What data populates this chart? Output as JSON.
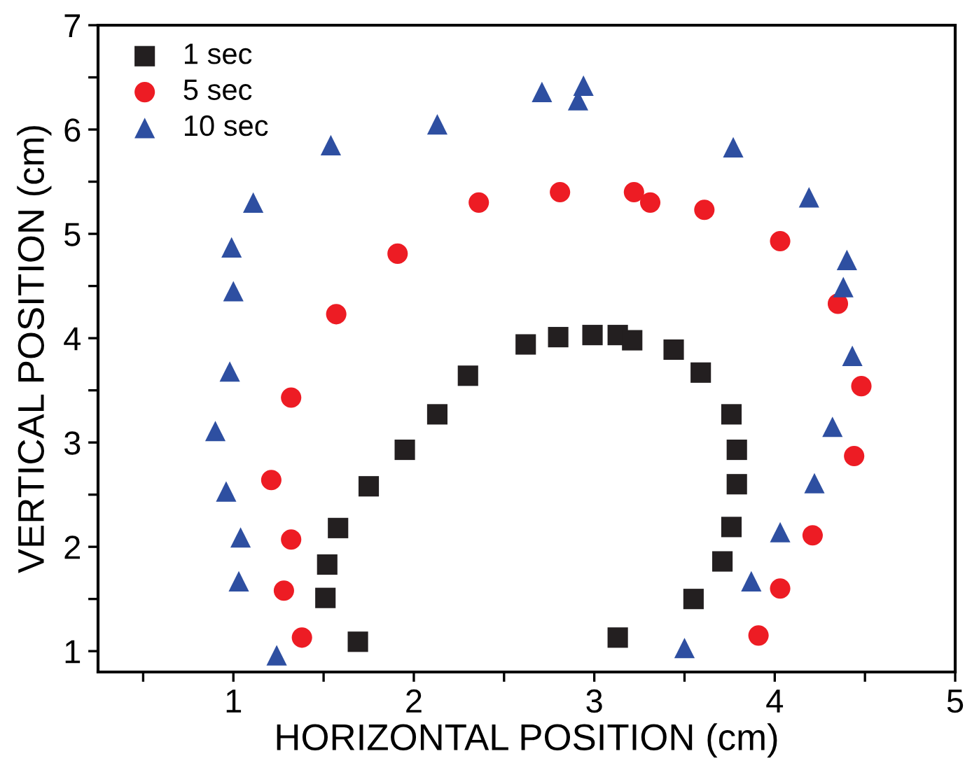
{
  "chart_data": {
    "type": "scatter",
    "xlabel": "HORIZONTAL POSITION (cm)",
    "ylabel": "VERTICAL POSITION (cm)",
    "xlim": [
      0.25,
      5
    ],
    "ylim": [
      0.8,
      7
    ],
    "xticks": [
      {
        "value": 0.5,
        "label": null
      },
      1,
      {
        "value": 1.5,
        "label": null
      },
      2,
      {
        "value": 2.5,
        "label": null
      },
      3,
      {
        "value": 3.5,
        "label": null
      },
      4,
      {
        "value": 4.5,
        "label": null
      },
      5
    ],
    "yticks": [
      1,
      {
        "value": 1.5,
        "label": null
      },
      2,
      {
        "value": 2.5,
        "label": null
      },
      3,
      {
        "value": 3.5,
        "label": null
      },
      4,
      {
        "value": 4.5,
        "label": null
      },
      5,
      {
        "value": 5.5,
        "label": null
      },
      6,
      {
        "value": 6.5,
        "label": null
      },
      7
    ],
    "grid": false,
    "legend": "top left",
    "series": [
      {
        "name": "1 sec",
        "color": "#231f20",
        "marker": "square",
        "x": [
          1.69,
          1.51,
          1.52,
          1.58,
          1.75,
          1.95,
          2.13,
          2.3,
          2.62,
          2.8,
          2.99,
          3.13,
          3.21,
          3.44,
          3.59,
          3.76,
          3.79,
          3.79,
          3.76,
          3.71,
          3.55,
          3.13
        ],
        "values": [
          1.09,
          1.51,
          1.83,
          2.18,
          2.58,
          2.93,
          3.27,
          3.64,
          3.94,
          4.01,
          4.03,
          4.03,
          3.98,
          3.89,
          3.67,
          3.27,
          2.93,
          2.6,
          2.19,
          1.86,
          1.5,
          1.13
        ]
      },
      {
        "name": "5 sec",
        "color": "#ed1c24",
        "marker": "circle",
        "x": [
          1.38,
          1.28,
          1.32,
          1.21,
          1.32,
          1.57,
          1.91,
          2.36,
          2.81,
          3.22,
          3.31,
          3.61,
          4.03,
          4.35,
          4.48,
          4.44,
          4.21,
          4.03,
          3.91
        ],
        "values": [
          1.13,
          1.58,
          2.07,
          2.64,
          3.43,
          4.23,
          4.81,
          5.3,
          5.4,
          5.4,
          5.3,
          5.23,
          4.93,
          4.33,
          3.54,
          2.87,
          2.11,
          1.6,
          1.15
        ]
      },
      {
        "name": "10 sec",
        "color": "#2e4fa1",
        "marker": "triangle",
        "x": [
          1.24,
          1.03,
          1.04,
          0.96,
          0.9,
          0.98,
          1.0,
          0.99,
          1.11,
          1.54,
          2.13,
          2.71,
          2.91,
          2.94,
          3.77,
          4.19,
          4.4,
          4.38,
          4.43,
          4.32,
          4.22,
          4.03,
          3.87,
          3.5
        ],
        "values": [
          0.96,
          1.67,
          2.09,
          2.53,
          3.11,
          3.68,
          4.45,
          4.87,
          5.3,
          5.85,
          6.05,
          6.36,
          6.28,
          6.42,
          5.83,
          5.35,
          4.75,
          4.49,
          3.83,
          3.15,
          2.61,
          2.14,
          1.67,
          1.03
        ]
      }
    ]
  }
}
